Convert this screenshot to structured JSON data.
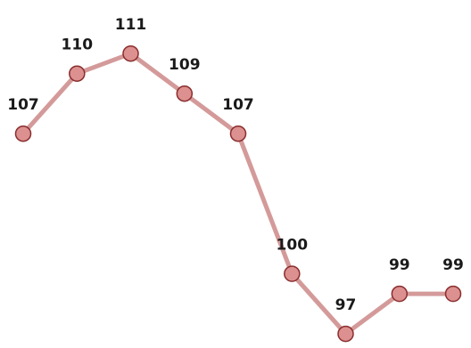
{
  "chart_data": {
    "type": "line",
    "title": "",
    "xlabel": "",
    "ylabel": "",
    "x": [
      1,
      2,
      3,
      4,
      5,
      6,
      7,
      8,
      9
    ],
    "values": [
      107,
      110,
      111,
      109,
      107,
      100,
      97,
      99,
      99
    ],
    "data_labels": [
      "107",
      "110",
      "111",
      "109",
      "107",
      "100",
      "97",
      "99",
      "99"
    ],
    "ylim": [
      96,
      113
    ],
    "axes_visible": false,
    "grid": false,
    "line_color": "#d49a9a",
    "marker_fill": "#dd9090",
    "marker_stroke": "#8a2e2e"
  }
}
